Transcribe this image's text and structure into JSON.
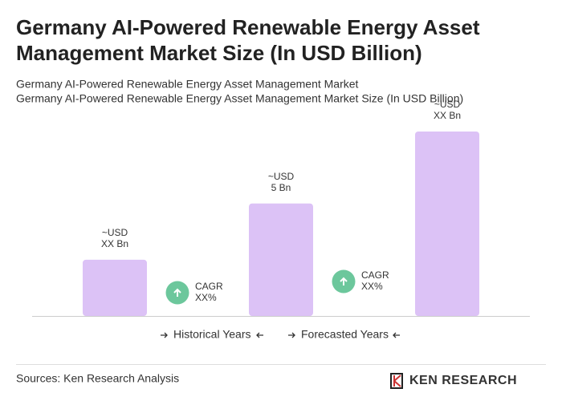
{
  "chart_data": {
    "type": "bar",
    "title": "Germany AI-Powered Renewable Energy Asset Management Market Size (In USD Billion)",
    "subtitles": [
      "Germany AI-Powered Renewable Energy Asset Management Market",
      "Germany AI-Powered Renewable Energy Asset Management Market Size (In USD Billion)"
    ],
    "values": [
      2.5,
      5,
      8.2
    ],
    "value_labels": [
      [
        "~USD",
        "XX Bn"
      ],
      [
        "~USD",
        "5 Bn"
      ],
      [
        "~USD",
        "XX Bn"
      ]
    ],
    "color": "#dcc2f6",
    "annotations": [
      [
        "CAGR",
        "XX%"
      ],
      [
        "CAGR",
        "XX%"
      ]
    ],
    "annotation_color": "#6cc79c",
    "legend": [
      "Historical Years",
      "Forecasted Years"
    ],
    "source": "Sources: Ken Research Analysis",
    "logo": "KEN RESEARCH"
  }
}
